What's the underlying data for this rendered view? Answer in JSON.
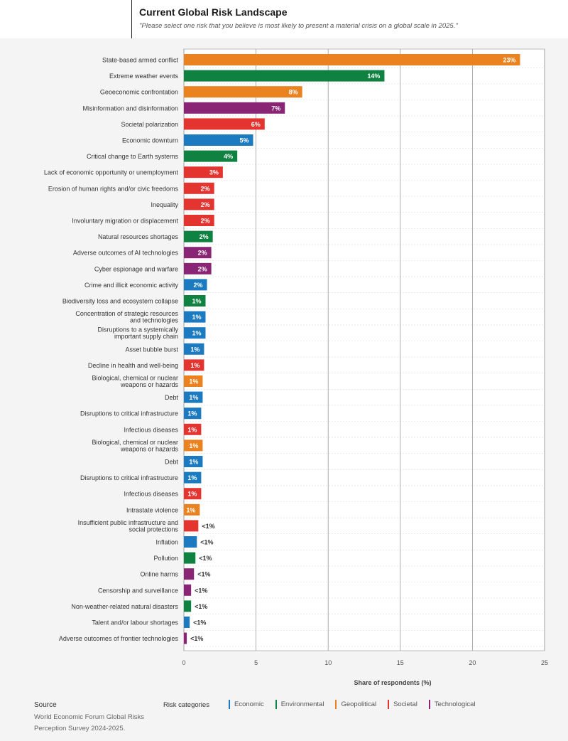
{
  "header": {
    "title": "Current Global Risk Landscape",
    "subtitle": "\"Please select one risk that you believe is most likely to present a material crisis on a global scale in 2025.\""
  },
  "footer": {
    "source_title": "Source",
    "source_text": "World Economic Forum Global Risks Perception Survey 2024-2025.",
    "legend_title": "Risk categories"
  },
  "colors": {
    "Economic": "#1b7ac0",
    "Environmental": "#0f8140",
    "Geopolitical": "#e9821f",
    "Societal": "#e33430",
    "Technological": "#8a2475"
  },
  "chart_data": {
    "type": "bar",
    "orientation": "horizontal",
    "xlabel": "Share of respondents (%)",
    "xlim": [
      0,
      25
    ],
    "xticks": [
      0,
      5,
      10,
      15,
      20,
      25
    ],
    "grid": "vertical",
    "legend": "bottom",
    "legend_entries": [
      "Economic",
      "Environmental",
      "Geopolitical",
      "Societal",
      "Technological"
    ],
    "bars": [
      {
        "label": "State-based armed conflict",
        "value": 23.3,
        "text": "23%",
        "category": "Geopolitical"
      },
      {
        "label": "Extreme weather events",
        "value": 13.9,
        "text": "14%",
        "category": "Environmental"
      },
      {
        "label": "Geoeconomic confrontation",
        "value": 8.2,
        "text": "8%",
        "category": "Geopolitical"
      },
      {
        "label": "Misinformation and disinformation",
        "value": 7.0,
        "text": "7%",
        "category": "Technological"
      },
      {
        "label": "Societal polarization",
        "value": 5.6,
        "text": "6%",
        "category": "Societal"
      },
      {
        "label": "Economic downturn",
        "value": 4.8,
        "text": "5%",
        "category": "Economic"
      },
      {
        "label": "Critical change to Earth systems",
        "value": 3.7,
        "text": "4%",
        "category": "Environmental"
      },
      {
        "label": "Lack of economic opportunity or unemployment",
        "value": 2.7,
        "text": "3%",
        "category": "Societal"
      },
      {
        "label": "Erosion of human rights and/or civic freedoms",
        "value": 2.1,
        "text": "2%",
        "category": "Societal"
      },
      {
        "label": "Inequality",
        "value": 2.1,
        "text": "2%",
        "category": "Societal"
      },
      {
        "label": "Involuntary migration or displacement",
        "value": 2.1,
        "text": "2%",
        "category": "Societal"
      },
      {
        "label": "Natural resources shortages",
        "value": 2.0,
        "text": "2%",
        "category": "Environmental"
      },
      {
        "label": "Adverse outcomes of AI technologies",
        "value": 1.9,
        "text": "2%",
        "category": "Technological"
      },
      {
        "label": "Cyber espionage and warfare",
        "value": 1.9,
        "text": "2%",
        "category": "Technological"
      },
      {
        "label": "Crime and illicit economic activity",
        "value": 1.6,
        "text": "2%",
        "category": "Economic"
      },
      {
        "label": "Biodiversity loss and ecosystem collapse",
        "value": 1.5,
        "text": "1%",
        "category": "Environmental"
      },
      {
        "label": "Concentration of strategic resources and technologies",
        "value": 1.5,
        "text": "1%",
        "category": "Economic"
      },
      {
        "label": "Disruptions to a systemically important supply chain",
        "value": 1.5,
        "text": "1%",
        "category": "Economic"
      },
      {
        "label": "Asset bubble burst",
        "value": 1.4,
        "text": "1%",
        "category": "Economic"
      },
      {
        "label": "Decline in health and well-being",
        "value": 1.4,
        "text": "1%",
        "category": "Societal"
      },
      {
        "label": "Biological, chemical or nuclear weapons or hazards",
        "value": 1.3,
        "text": "1%",
        "category": "Geopolitical"
      },
      {
        "label": "Debt",
        "value": 1.3,
        "text": "1%",
        "category": "Economic"
      },
      {
        "label": "Disruptions to critical infrastructure",
        "value": 1.2,
        "text": "1%",
        "category": "Economic"
      },
      {
        "label": "Infectious diseases",
        "value": 1.2,
        "text": "1%",
        "category": "Societal"
      },
      {
        "label": "Biological, chemical or nuclear weapons or hazards",
        "value": 1.3,
        "text": "1%",
        "category": "Geopolitical"
      },
      {
        "label": "Debt",
        "value": 1.3,
        "text": "1%",
        "category": "Economic"
      },
      {
        "label": "Disruptions to critical infrastructure",
        "value": 1.2,
        "text": "1%",
        "category": "Economic"
      },
      {
        "label": "Infectious diseases",
        "value": 1.2,
        "text": "1%",
        "category": "Societal"
      },
      {
        "label": "Intrastate violence",
        "value": 1.1,
        "text": "1%",
        "category": "Geopolitical"
      },
      {
        "label": "Insufficient public infrastructure and social protections",
        "value": 1.0,
        "text": "<1%",
        "category": "Societal"
      },
      {
        "label": "Inflation",
        "value": 0.9,
        "text": "<1%",
        "category": "Economic"
      },
      {
        "label": "Pollution",
        "value": 0.8,
        "text": "<1%",
        "category": "Environmental"
      },
      {
        "label": "Online harms",
        "value": 0.7,
        "text": "<1%",
        "category": "Technological"
      },
      {
        "label": "Censorship and surveillance",
        "value": 0.5,
        "text": "<1%",
        "category": "Technological"
      },
      {
        "label": "Non-weather-related natural disasters",
        "value": 0.5,
        "text": "<1%",
        "category": "Environmental"
      },
      {
        "label": "Talent and/or labour shortages",
        "value": 0.4,
        "text": "<1%",
        "category": "Economic"
      },
      {
        "label": "Adverse outcomes of frontier technologies",
        "value": 0.2,
        "text": "<1%",
        "category": "Technological"
      }
    ]
  }
}
